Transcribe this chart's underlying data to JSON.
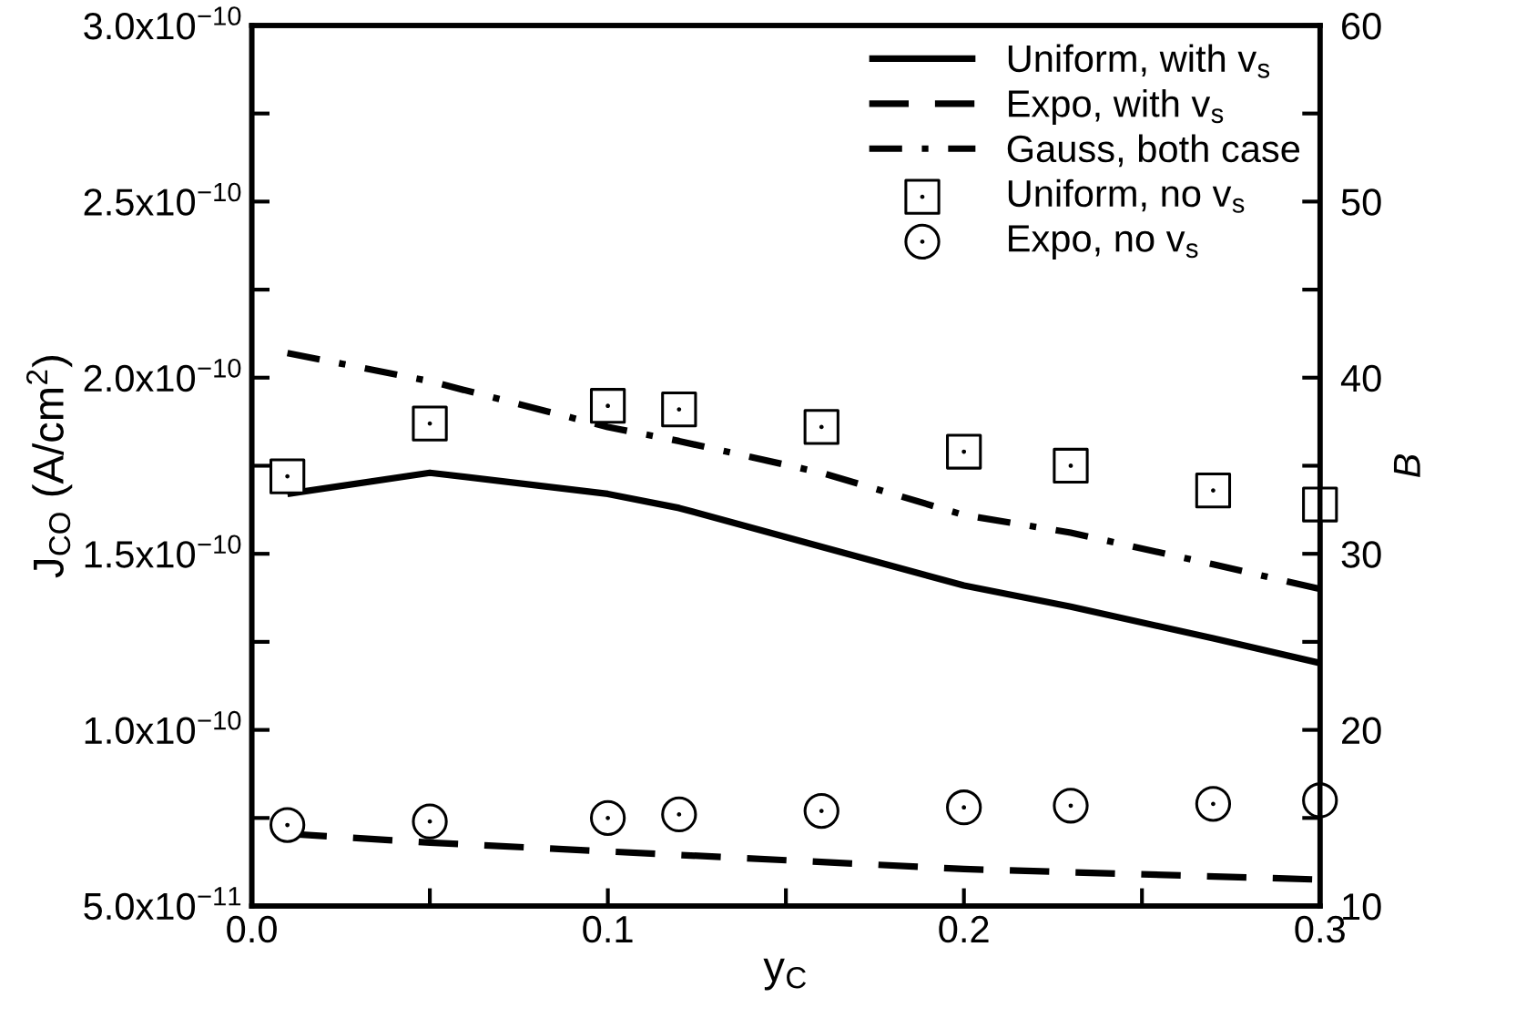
{
  "chart_data": {
    "type": "line",
    "xlabel": "y$_{C}$",
    "ylabel": "J$_{CO}$ (A/cm$^{2}$)",
    "y2label": "B",
    "xlim": [
      0.0,
      0.3
    ],
    "xticks": [
      {
        "value": 0.0,
        "label": "0.0"
      },
      {
        "value": 0.05,
        "label": null
      },
      0.1,
      {
        "value": 0.15,
        "label": null
      },
      0.2,
      {
        "value": 0.25,
        "label": null
      },
      0.3
    ],
    "ylim": [
      5e-11,
      3e-10
    ],
    "yticks": [
      {
        "value": 5e-11,
        "label": "5.0x10$^{−11}$"
      },
      {
        "value": 7.5e-11,
        "label": null
      },
      {
        "value": 1e-10,
        "label": "1.0x10$^{−10}$"
      },
      {
        "value": 1.25e-10,
        "label": null
      },
      {
        "value": 1.5e-10,
        "label": "1.5x10$^{−10}$"
      },
      {
        "value": 1.75e-10,
        "label": null
      },
      {
        "value": 2e-10,
        "label": "2.0x10$^{−10}$"
      },
      {
        "value": 2.25e-10,
        "label": null
      },
      {
        "value": 2.5e-10,
        "label": "2.5x10$^{−10}$"
      },
      {
        "value": 2.75e-10,
        "label": null
      },
      {
        "value": 3e-10,
        "label": "3.0x10$^{−10}$"
      }
    ],
    "y2lim": [
      10,
      60
    ],
    "y2ticks": [
      10,
      {
        "value": 15,
        "label": null
      },
      20,
      {
        "value": 25,
        "label": null
      },
      30,
      {
        "value": 35,
        "label": null
      },
      40,
      {
        "value": 45,
        "label": null
      },
      50,
      {
        "value": 55,
        "label": null
      },
      60
    ],
    "grid": false,
    "legend": "top right",
    "series": [
      {
        "name": "Uniform, with v$_{s}$",
        "line_style": "solid",
        "color": "#000000",
        "x": [
          0.01,
          0.05,
          0.1,
          0.12,
          0.16,
          0.2,
          0.23,
          0.27,
          0.3
        ],
        "values": [
          1.67e-10,
          1.73e-10,
          1.67e-10,
          1.63e-10,
          1.52e-10,
          1.41e-10,
          1.35e-10,
          1.26e-10,
          1.19e-10
        ]
      },
      {
        "name": "Expo, with v$_{s}$",
        "line_style": "dashed",
        "color": "#000000",
        "x": [
          0.01,
          0.05,
          0.1,
          0.2,
          0.3
        ],
        "values": [
          7.05e-11,
          6.8e-11,
          6.55e-11,
          6.05e-11,
          5.75e-11
        ]
      },
      {
        "name": "Gauss, both case",
        "line_style": "dashdot",
        "color": "#000000",
        "x": [
          0.01,
          0.05,
          0.1,
          0.12,
          0.16,
          0.2,
          0.23,
          0.27,
          0.3
        ],
        "values": [
          2.07e-10,
          1.99e-10,
          1.86e-10,
          1.82e-10,
          1.73e-10,
          1.61e-10,
          1.56e-10,
          1.47e-10,
          1.4e-10
        ]
      },
      {
        "name": "Uniform, no v$_{s}$",
        "type": "scatter",
        "marker": "square",
        "color": "#000000",
        "x": [
          0.01,
          0.05,
          0.1,
          0.12,
          0.16,
          0.2,
          0.23,
          0.27,
          0.3
        ],
        "values": [
          1.72e-10,
          1.87e-10,
          1.92e-10,
          1.91e-10,
          1.86e-10,
          1.79e-10,
          1.75e-10,
          1.68e-10,
          1.64e-10
        ]
      },
      {
        "name": "Expo, no v$_{s}$",
        "type": "scatter",
        "marker": "circle",
        "color": "#000000",
        "x": [
          0.01,
          0.05,
          0.1,
          0.12,
          0.16,
          0.2,
          0.23,
          0.27,
          0.3
        ],
        "values": [
          7.3e-11,
          7.4e-11,
          7.5e-11,
          7.6e-11,
          7.7e-11,
          7.8e-11,
          7.85e-11,
          7.9e-11,
          8e-11
        ]
      }
    ]
  }
}
